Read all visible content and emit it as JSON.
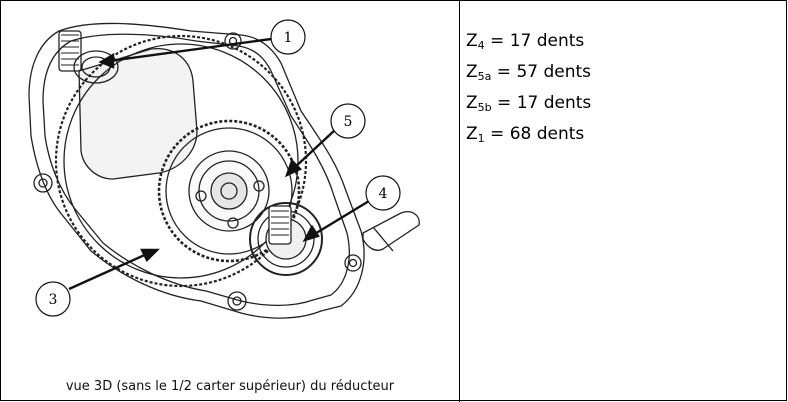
{
  "figure": {
    "caption": "vue 3D (sans le 1/2 carter supérieur) du réducteur",
    "callouts": [
      "1",
      "5",
      "4",
      "3"
    ]
  },
  "specs": [
    {
      "symbol": "Z",
      "subscript": "4",
      "value": " = 17 dents"
    },
    {
      "symbol": "Z",
      "subscript": "5a",
      "value": " = 57 dents"
    },
    {
      "symbol": "Z",
      "subscript": "5b",
      "value": " = 17 dents"
    },
    {
      "symbol": "Z",
      "subscript": "1",
      "value": " = 68 dents"
    }
  ]
}
